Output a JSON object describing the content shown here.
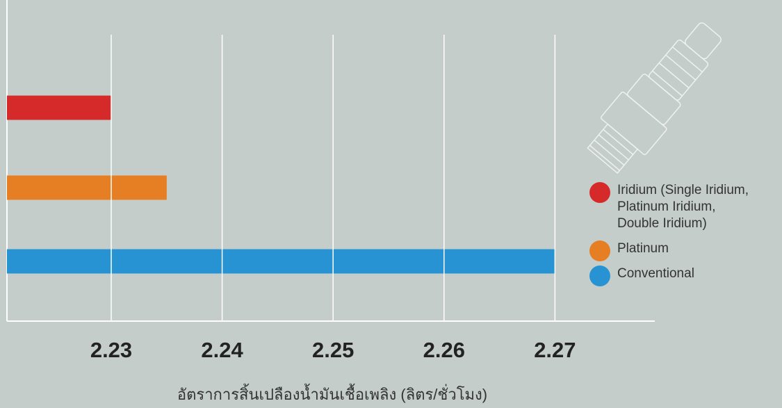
{
  "chart_data": {
    "type": "bar",
    "orientation": "horizontal",
    "x_label": "อัตราการสิ้นเปลืองน้ำมันเชื้อเพลิง (ลิตร/ชั่วโมง)",
    "series": [
      {
        "name": "Iridium (Single Iridium, Platinum Iridium, Double Iridium)",
        "color": "#d62a2a",
        "values": [
          2.23
        ]
      },
      {
        "name": "Platinum",
        "color": "#e67e24",
        "values": [
          2.235
        ]
      },
      {
        "name": "Conventional",
        "color": "#2893d2",
        "values": [
          2.27
        ]
      }
    ],
    "xlim": [
      2.2206,
      2.279
    ],
    "xticks": [
      2.23,
      2.24,
      2.25,
      2.26,
      2.27
    ],
    "grid": true,
    "legend": "right"
  }
}
